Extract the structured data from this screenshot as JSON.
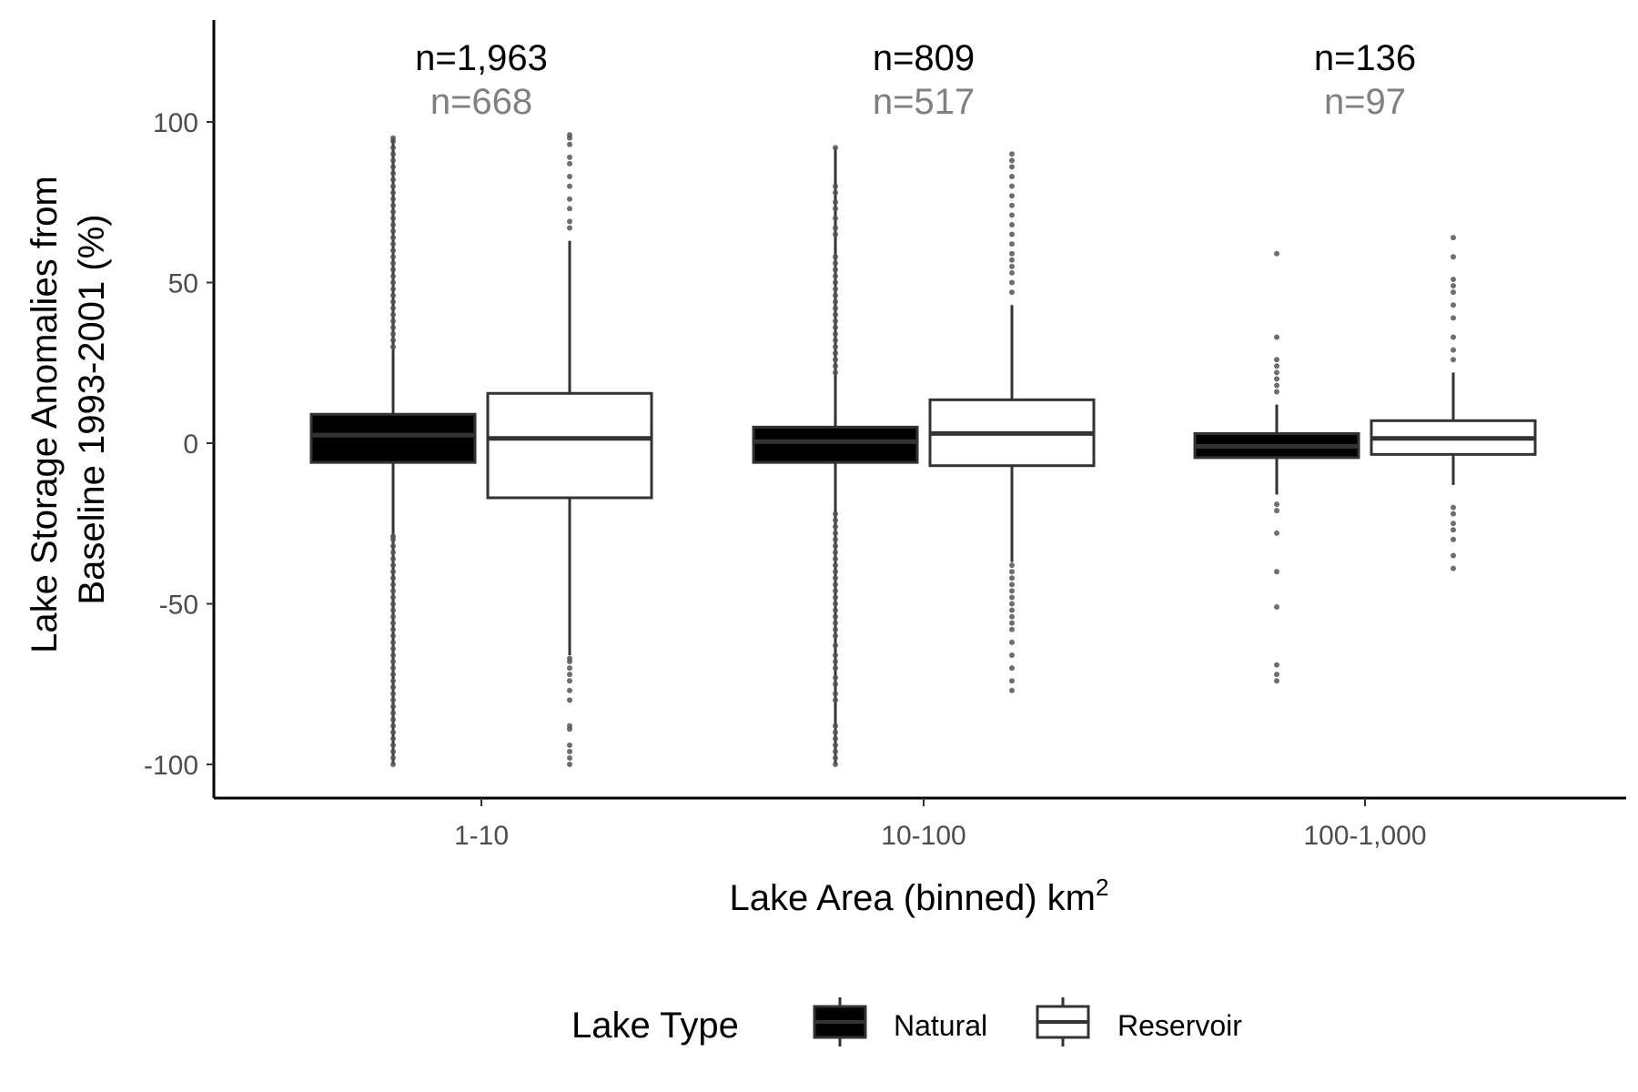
{
  "chart_data": {
    "type": "box",
    "xlabel": "Lake Area (binned) km",
    "xlabel_superscript": "2",
    "ylabel_lines": [
      "Lake Storage Anomalies from",
      "Baseline 1993-2001 (%)"
    ],
    "ylim": [
      -110,
      130
    ],
    "yticks": [
      100,
      50,
      0,
      -50,
      -100
    ],
    "ytick_labels": [
      "100",
      "50",
      "0",
      "-50",
      "-100"
    ],
    "categories": [
      "1-10",
      "10-100",
      "100-1,000"
    ],
    "legend": {
      "title": "Lake Type",
      "position": "bottom",
      "entries": [
        {
          "label": "Natural",
          "fill": "#000000"
        },
        {
          "label": "Reservoir",
          "fill": "#ffffff"
        }
      ]
    },
    "colors": {
      "natural_fill": "#000000",
      "natural_line": "#333333",
      "reservoir_fill": "#ffffff",
      "reservoir_line": "#333333",
      "outlier": "#555555",
      "reservoir_count": "#808080"
    },
    "series": [
      {
        "name": "Natural",
        "counts": [
          "n=1,963",
          "n=809",
          "n=136"
        ],
        "boxes": [
          {
            "low": -100,
            "q1": -6,
            "median": 2.5,
            "q3": 9,
            "high": 95,
            "outliers": [
              -100,
              -98,
              -96,
              -94,
              -92,
              -90,
              -88,
              -86,
              -84,
              -82,
              -80,
              -78,
              -76,
              -74,
              -72,
              -70,
              -68,
              -66,
              -64,
              -62,
              -60,
              -58,
              -56,
              -54,
              -52,
              -50,
              -48,
              -46,
              -44,
              -42,
              -40,
              -38,
              -36,
              -34,
              -32,
              -30,
              -29,
              30,
              32,
              34,
              36,
              38,
              40,
              42,
              44,
              46,
              48,
              50,
              52,
              54,
              56,
              58,
              60,
              62,
              64,
              66,
              68,
              70,
              72,
              74,
              76,
              78,
              80,
              82,
              84,
              86,
              88,
              90,
              92,
              94,
              95
            ]
          },
          {
            "low": -100,
            "q1": -6,
            "median": 0.5,
            "q3": 5,
            "high": 92,
            "outliers": [
              -100,
              -98,
              -96,
              -94,
              -92,
              -90,
              -88,
              -80,
              -78,
              -75,
              -73,
              -70,
              -68,
              -66,
              -63,
              -60,
              -58,
              -56,
              -54,
              -52,
              -50,
              -48,
              -46,
              -44,
              -42,
              -40,
              -38,
              -36,
              -34,
              -32,
              -30,
              -28,
              -26,
              -24,
              -22,
              22,
              24,
              26,
              28,
              30,
              32,
              34,
              36,
              38,
              40,
              42,
              44,
              46,
              48,
              50,
              52,
              54,
              56,
              58,
              65,
              67,
              70,
              73,
              75,
              78,
              80,
              92
            ]
          },
          {
            "low": -16,
            "q1": -4.5,
            "median": -1,
            "q3": 3,
            "high": 12,
            "outliers": [
              -74,
              -72,
              -69,
              -51,
              -40,
              -28,
              -21,
              -19,
              16,
              18,
              20,
              22,
              24,
              26,
              33,
              59
            ]
          }
        ]
      },
      {
        "name": "Reservoir",
        "counts": [
          "n=668",
          "n=517",
          "n=97"
        ],
        "boxes": [
          {
            "low": -66,
            "q1": -17,
            "median": 1.5,
            "q3": 15.5,
            "high": 63,
            "outliers": [
              -100,
              -98,
              -96,
              -94,
              -89,
              -88,
              -80,
              -77,
              -74,
              -72,
              -70,
              -68,
              -67,
              67,
              69,
              73,
              76,
              80,
              83,
              87,
              89,
              93,
              95,
              96
            ]
          },
          {
            "low": -37,
            "q1": -7,
            "median": 3,
            "q3": 13.5,
            "high": 43,
            "outliers": [
              -77,
              -74,
              -70,
              -66,
              -62,
              -58,
              -56,
              -54,
              -52,
              -50,
              -48,
              -46,
              -44,
              -42,
              -40,
              -38,
              47,
              50,
              53,
              55,
              57,
              59,
              62,
              65,
              68,
              71,
              74,
              77,
              80,
              83,
              86,
              88,
              90
            ]
          },
          {
            "low": -13,
            "q1": -3.5,
            "median": 1.5,
            "q3": 7,
            "high": 22,
            "outliers": [
              -39,
              -35,
              -30,
              -27,
              -25,
              -22,
              -20,
              26,
              29,
              33,
              39,
              43,
              47,
              49,
              51,
              58,
              64
            ]
          }
        ]
      }
    ]
  }
}
